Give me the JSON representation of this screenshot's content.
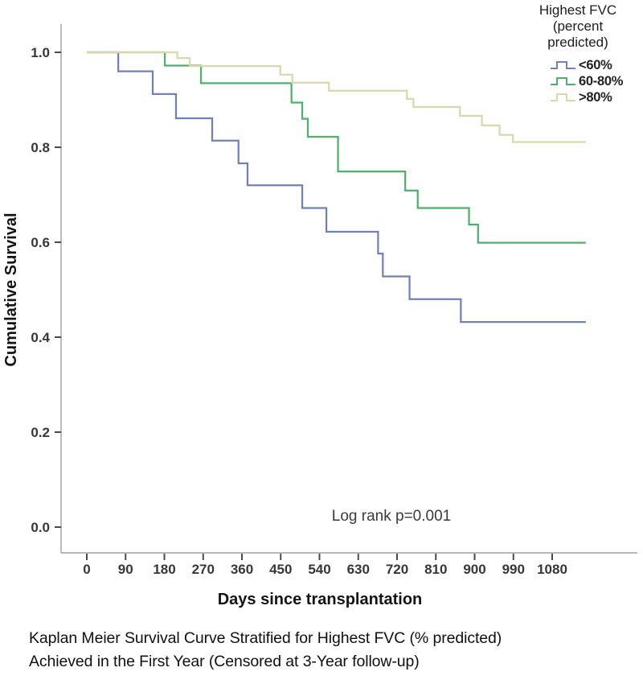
{
  "legend": {
    "title_lines": [
      "Highest FVC",
      "(percent",
      "predicted)"
    ]
  },
  "annotation": {
    "log_rank": "Log rank p=0.001"
  },
  "caption": {
    "line1": "Kaplan Meier Survival Curve Stratified for Highest FVC (% predicted)",
    "line2": "Achieved in the First Year (Censored at 3-Year follow-up)"
  },
  "chart_data": {
    "type": "line",
    "subtype": "kaplan-meier-step",
    "xlabel": "Days since transplantation",
    "ylabel": "Cumulative Survival",
    "xlim": [
      0,
      1280
    ],
    "ylim": [
      0.0,
      1.0
    ],
    "grid": false,
    "legend_position": "top-right-outside",
    "x_ticks": [
      0,
      90,
      180,
      270,
      360,
      450,
      540,
      630,
      720,
      810,
      900,
      990,
      1080
    ],
    "y_ticks": [
      1.0,
      0.8,
      0.6,
      0.4,
      0.2,
      0.0
    ],
    "y_tick_labels": [
      "1.0",
      "0.8",
      "0.6",
      "0.4",
      "0.2",
      "0.0"
    ],
    "series": [
      {
        "name": "<60%",
        "color": "#7181b5",
        "points": [
          [
            0,
            1.0
          ],
          [
            73,
            0.96
          ],
          [
            153,
            0.912
          ],
          [
            207,
            0.861
          ],
          [
            291,
            0.814
          ],
          [
            352,
            0.766
          ],
          [
            373,
            0.72
          ],
          [
            500,
            0.672
          ],
          [
            556,
            0.622
          ],
          [
            676,
            0.576
          ],
          [
            687,
            0.528
          ],
          [
            749,
            0.48
          ],
          [
            868,
            0.432
          ],
          [
            1158,
            0.432
          ]
        ]
      },
      {
        "name": "60-80%",
        "color": "#4fb06c",
        "points": [
          [
            0,
            1.0
          ],
          [
            181,
            0.972
          ],
          [
            265,
            0.935
          ],
          [
            475,
            0.894
          ],
          [
            500,
            0.86
          ],
          [
            513,
            0.822
          ],
          [
            583,
            0.749
          ],
          [
            739,
            0.709
          ],
          [
            768,
            0.672
          ],
          [
            887,
            0.637
          ],
          [
            908,
            0.599
          ],
          [
            1158,
            0.599
          ]
        ]
      },
      {
        "name": ">80%",
        "color": "#d9d7ab",
        "points": [
          [
            0,
            1.0
          ],
          [
            210,
            0.988
          ],
          [
            239,
            0.971
          ],
          [
            449,
            0.953
          ],
          [
            477,
            0.936
          ],
          [
            562,
            0.919
          ],
          [
            743,
            0.902
          ],
          [
            758,
            0.885
          ],
          [
            866,
            0.866
          ],
          [
            917,
            0.846
          ],
          [
            958,
            0.826
          ],
          [
            989,
            0.811
          ],
          [
            1158,
            0.811
          ]
        ]
      }
    ]
  }
}
